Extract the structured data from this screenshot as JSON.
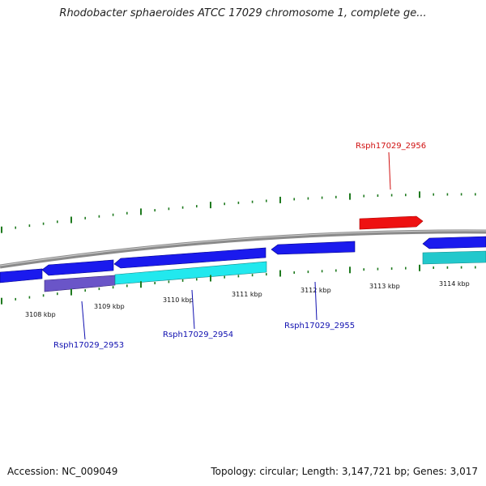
{
  "title": "Rhodobacter sphaeroides ATCC 17029 chromosome 1, complete ge...",
  "footer": {
    "accession": "Accession: NC_009049",
    "summary": "Topology: circular; Length: 3,147,721 bp; Genes: 3,017"
  },
  "scale_labels": [
    "3108 kbp",
    "3109 kbp",
    "3110 kbp",
    "3111 kbp",
    "3112 kbp",
    "3113 kbp",
    "3114 kbp"
  ],
  "gene_labels": {
    "g2953": "Rsph17029_2953",
    "g2954": "Rsph17029_2954",
    "g2955": "Rsph17029_2955",
    "g2956": "Rsph17029_2956"
  },
  "colors": {
    "backbone": "#8a8a8a",
    "cds_blue": "#1a1aee",
    "cds_cyan": "#22e8ee",
    "cds_purple": "#6a55c8",
    "cds_red": "#ee1111",
    "tick_green": "#1f7a1f",
    "label_blue": "#1010b0",
    "label_red": "#d01010"
  }
}
